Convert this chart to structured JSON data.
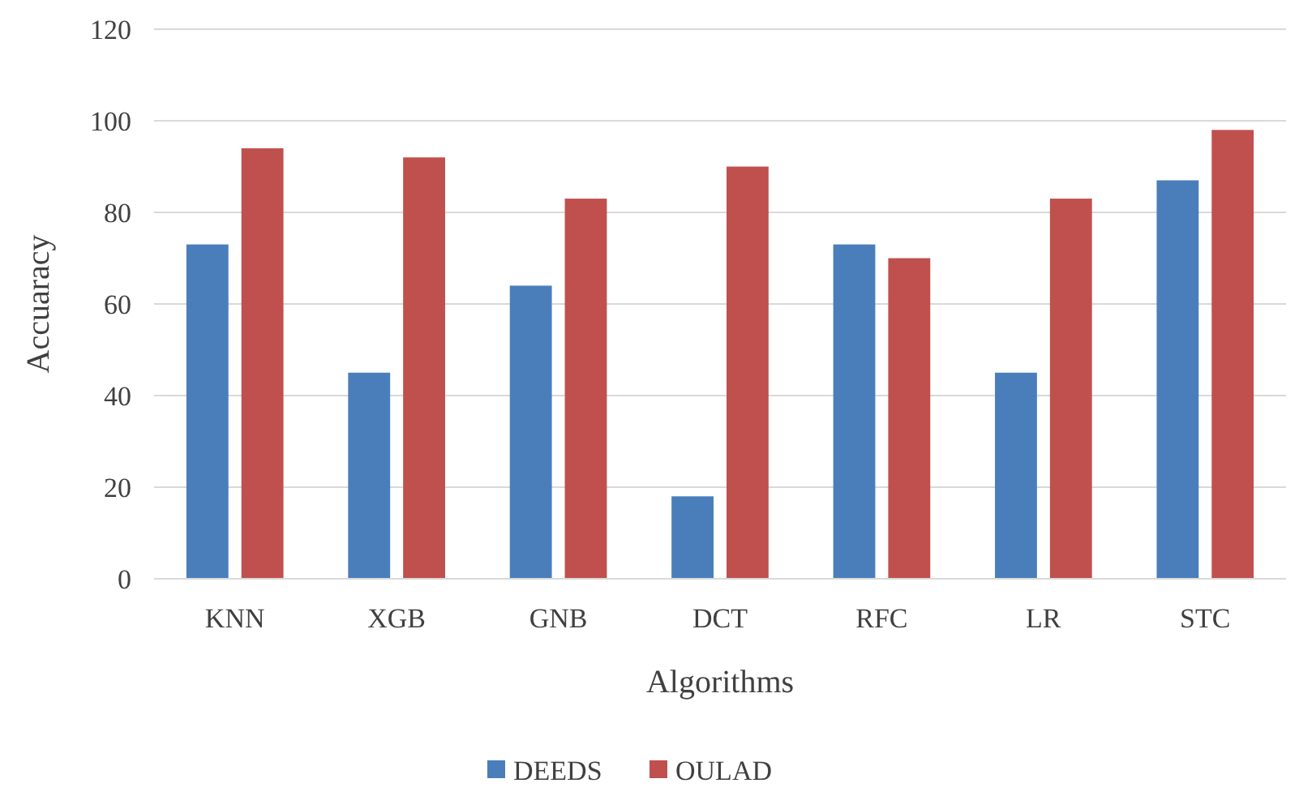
{
  "chart_data": {
    "type": "bar",
    "xlabel": "Algorithms",
    "ylabel": "Accuaracy",
    "categories": [
      "KNN",
      "XGB",
      "GNB",
      "DCT",
      "RFC",
      "LR",
      "STC"
    ],
    "series": [
      {
        "name": "DEEDS",
        "color": "#4a7ebb",
        "values": [
          73,
          45,
          64,
          18,
          73,
          45,
          87
        ]
      },
      {
        "name": "OULAD",
        "color": "#c0504d",
        "values": [
          94,
          92,
          83,
          90,
          70,
          83,
          98
        ]
      }
    ],
    "ylim": [
      0,
      120
    ],
    "yticks": [
      0,
      20,
      40,
      60,
      80,
      100,
      120
    ],
    "grid": "y",
    "legend": "bottom"
  }
}
